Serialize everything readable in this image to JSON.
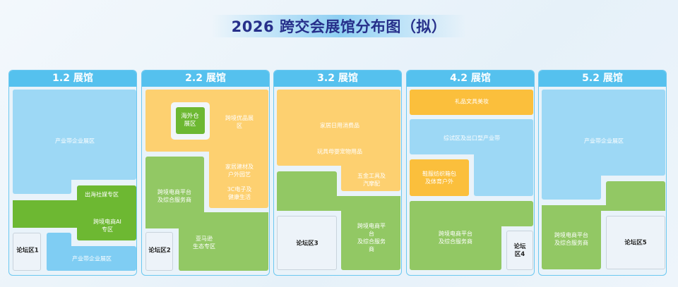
{
  "title": "2026 跨交会展馆分布图（拟）",
  "colors": {
    "header": "#55c1ee",
    "title": "#262f8a",
    "industry_blue": "#9dd8f5",
    "green_dark": "#6db832",
    "green_light": "#92c864",
    "yellow": "#fdd070",
    "orange": "#fbbf3c"
  },
  "halls": [
    {
      "name": "1.2 展馆",
      "zones": [
        "产业带企业展区",
        "出海社媒专区",
        "跨境电商AI专区",
        "产业带企业展区",
        "论坛区1"
      ]
    },
    {
      "name": "2.2 展馆",
      "zones": [
        "海外仓\n展区",
        "跨境优品展区",
        "家居建材及\n户外园艺",
        "3C电子及\n健康生活",
        "跨境电商平台\n及综合服务商",
        "亚马逊\n生态专区",
        "论坛区2"
      ]
    },
    {
      "name": "3.2 展馆",
      "zones": [
        "家居日用消费品",
        "玩具母婴宠物用品",
        "五金工具及汽摩配",
        "跨境电商平台\n及综合服务商",
        "论坛区3"
      ]
    },
    {
      "name": "4.2 展馆",
      "zones": [
        "礼品文具美妆",
        "综试区及出口型产业带",
        "鞋服纺织箱包\n及体育户外",
        "跨境电商平台\n及综合服务商",
        "论坛区4"
      ]
    },
    {
      "name": "5.2 展馆",
      "zones": [
        "产业带企业展区",
        "跨境电商平台\n及综合服务商",
        "论坛区5"
      ]
    }
  ]
}
